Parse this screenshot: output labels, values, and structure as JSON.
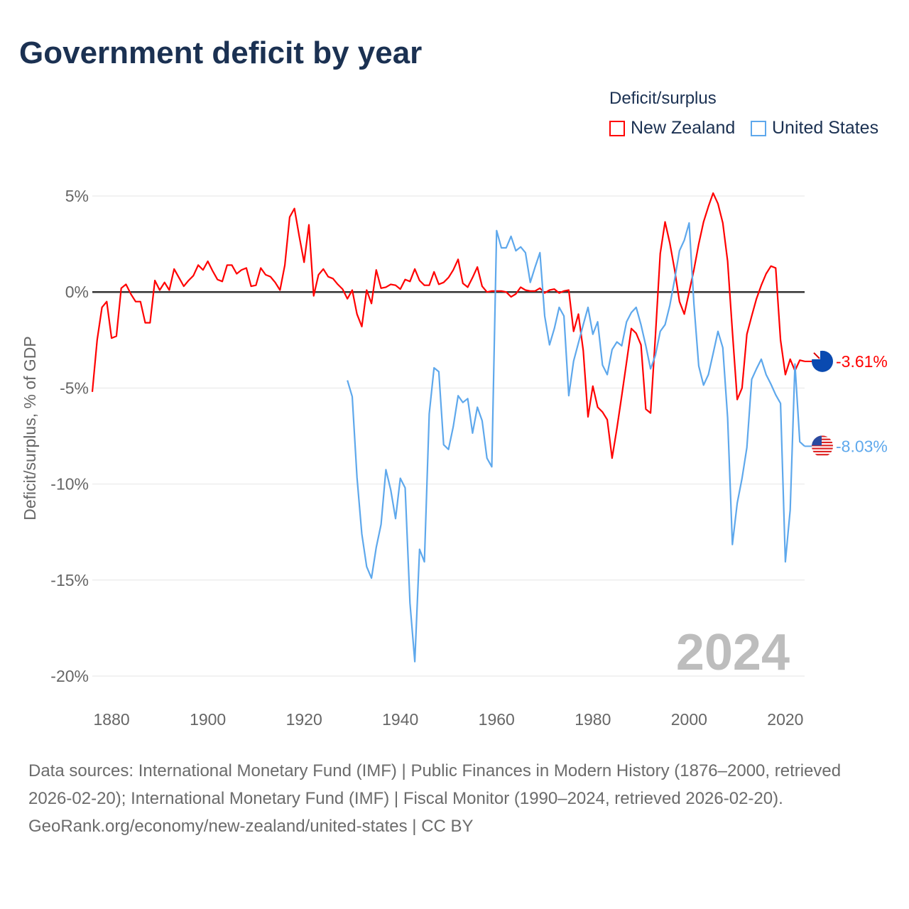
{
  "title": "Government deficit by year",
  "legend": {
    "title": "Deficit/surplus",
    "items": [
      {
        "label": "New Zealand",
        "color": "#ff0000"
      },
      {
        "label": "United States",
        "color": "#5ea8ec"
      }
    ]
  },
  "chart_data": {
    "type": "line",
    "title": "Government deficit by year",
    "xlabel": "",
    "ylabel": "Deficit/surplus, % of GDP",
    "xlim": [
      1876,
      2024
    ],
    "ylim": [
      -20,
      5
    ],
    "x_ticks": [
      1880,
      1900,
      1920,
      1940,
      1960,
      1980,
      2000,
      2020
    ],
    "x_tick_labels": [
      "1880",
      "1900",
      "1920",
      "1940",
      "1960",
      "1980",
      "2000",
      "2020"
    ],
    "y_ticks": [
      5,
      0,
      -5,
      -10,
      -15,
      -20
    ],
    "y_tick_labels": [
      "5%",
      "0%",
      "-5%",
      "-10%",
      "-15%",
      "-20%"
    ],
    "grid": true,
    "legend_position": "top-right",
    "year_label": "2024",
    "series": [
      {
        "name": "New Zealand",
        "color": "#ff0000",
        "start_year": 1876,
        "end_label": "-3.61%",
        "values": [
          -5.2,
          -2.5,
          -0.8,
          -0.5,
          -2.4,
          -2.3,
          0.2,
          0.4,
          -0.1,
          -0.5,
          -0.5,
          -1.6,
          -1.6,
          0.6,
          0.1,
          0.5,
          0.1,
          1.2,
          0.75,
          0.3,
          0.6,
          0.85,
          1.4,
          1.15,
          1.6,
          1.1,
          0.65,
          0.55,
          1.4,
          1.4,
          0.95,
          1.15,
          1.25,
          0.3,
          0.35,
          1.25,
          0.9,
          0.8,
          0.5,
          0.1,
          1.4,
          3.9,
          4.35,
          2.9,
          1.55,
          3.5,
          -0.2,
          0.9,
          1.2,
          0.8,
          0.7,
          0.4,
          0.15,
          -0.35,
          0.1,
          -1.15,
          -1.8,
          0.1,
          -0.6,
          1.15,
          0.2,
          0.25,
          0.4,
          0.35,
          0.15,
          0.65,
          0.55,
          1.2,
          0.6,
          0.35,
          0.35,
          1.05,
          0.4,
          0.5,
          0.75,
          1.15,
          1.7,
          0.45,
          0.25,
          0.75,
          1.3,
          0.3,
          0.0,
          0.05,
          0.05,
          0.05,
          0.0,
          -0.25,
          -0.1,
          0.25,
          0.1,
          0.05,
          0.05,
          0.2,
          -0.05,
          0.1,
          0.15,
          -0.05,
          0.05,
          0.1,
          -2.05,
          -1.15,
          -3.05,
          -6.5,
          -4.9,
          -6.0,
          -6.25,
          -6.65,
          -8.65,
          -7.1,
          -5.4,
          -3.65,
          -1.9,
          -2.15,
          -2.75,
          -6.1,
          -6.3,
          -2.3,
          2.0,
          3.65,
          2.55,
          1.15,
          -0.5,
          -1.15,
          0.0,
          1.15,
          2.5,
          3.65,
          4.45,
          5.15,
          4.6,
          3.6,
          1.6,
          -2.05,
          -5.6,
          -5.0,
          -2.2,
          -1.25,
          -0.35,
          0.35,
          0.95,
          1.35,
          1.25,
          -2.5,
          -4.3,
          -3.5,
          -4.1,
          -3.55,
          -3.61
        ]
      },
      {
        "name": "United States",
        "color": "#5ea8ec",
        "start_year": 1929,
        "end_label": "-8.03%",
        "values": [
          -4.6,
          -5.45,
          -9.65,
          -12.6,
          -14.3,
          -14.9,
          -13.3,
          -12.1,
          -9.25,
          -10.3,
          -11.8,
          -9.7,
          -10.2,
          -16.2,
          -19.25,
          -13.4,
          -14.05,
          -6.35,
          -3.95,
          -4.15,
          -7.95,
          -8.2,
          -7.0,
          -5.4,
          -5.75,
          -5.55,
          -7.35,
          -6.0,
          -6.7,
          -8.65,
          -9.1,
          3.2,
          2.3,
          2.3,
          2.9,
          2.15,
          2.35,
          2.05,
          0.5,
          1.3,
          2.05,
          -1.25,
          -2.75,
          -1.9,
          -0.8,
          -1.25,
          -5.4,
          -3.6,
          -2.65,
          -1.7,
          -0.8,
          -2.2,
          -1.55,
          -3.8,
          -4.3,
          -3.0,
          -2.6,
          -2.8,
          -1.55,
          -1.07,
          -0.8,
          -1.7,
          -2.8,
          -4.0,
          -3.3,
          -2.05,
          -1.7,
          -0.7,
          0.65,
          2.15,
          2.7,
          3.6,
          -0.6,
          -3.85,
          -4.85,
          -4.3,
          -3.2,
          -2.05,
          -2.9,
          -6.55,
          -13.15,
          -11.0,
          -9.7,
          -8.1,
          -4.55,
          -4.0,
          -3.5,
          -4.3,
          -4.8,
          -5.35,
          -5.8,
          -14.05,
          -11.35,
          -3.75,
          -7.8,
          -8.03
        ]
      }
    ]
  },
  "footer": {
    "sources": "Data sources: International Monetary Fund (IMF) | Public Finances in Modern History (1876–2000, retrieved 2026-02-20); International Monetary Fund (IMF) | Fiscal Monitor (1990–2024, retrieved 2026-02-20).",
    "link": "GeoRank.org/economy/new-zealand/united-states | CC BY"
  }
}
